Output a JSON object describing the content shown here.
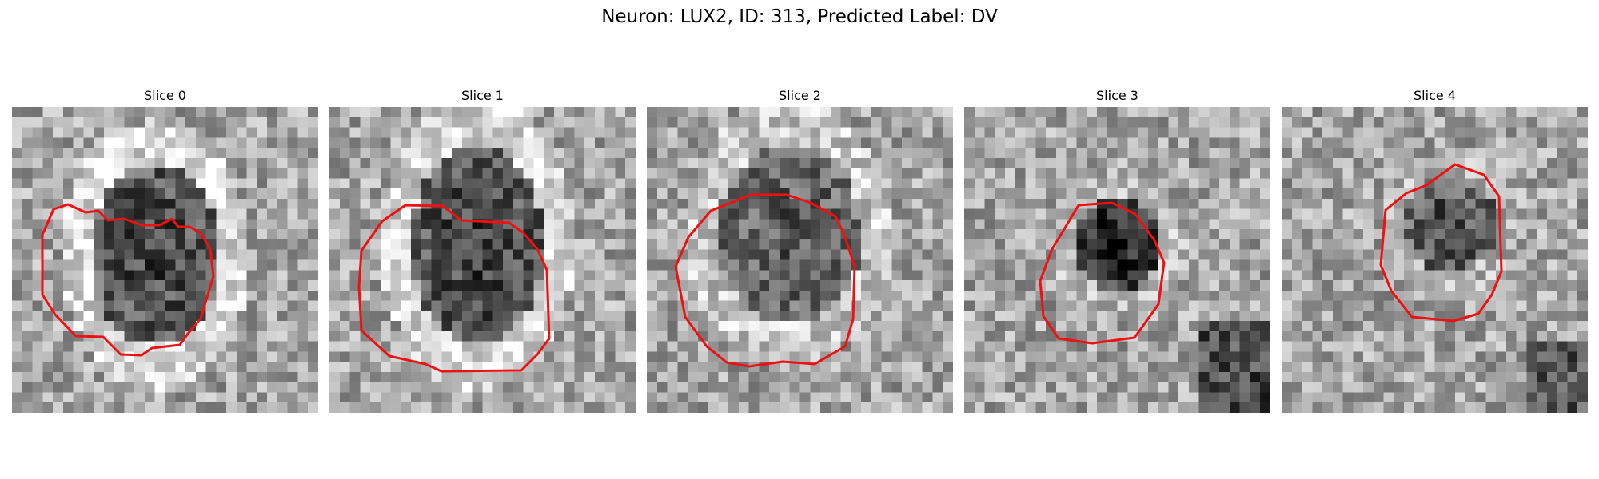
{
  "figure": {
    "title": "Neuron: LUX2, ID: 313, Predicted Label: DV"
  },
  "panels": [
    {
      "title": "Slice 0"
    },
    {
      "title": "Slice 1"
    },
    {
      "title": "Slice 2"
    },
    {
      "title": "Slice 3"
    },
    {
      "title": "Slice 4"
    }
  ],
  "colors": {
    "contour": "#ee1111",
    "colormap": "grayscale"
  }
}
